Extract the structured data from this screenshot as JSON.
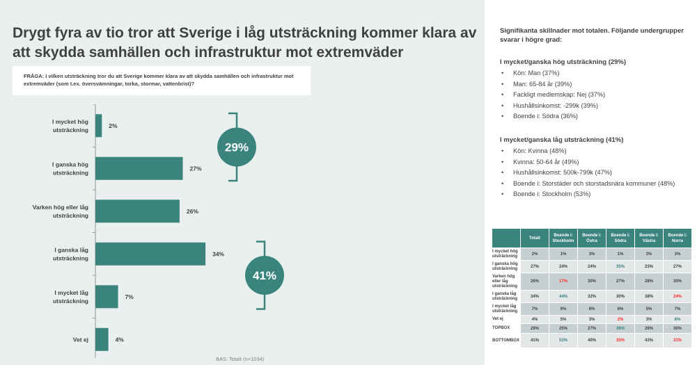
{
  "title": "Drygt fyra av tio tror att Sverige i låg utsträckning kommer klara av att skydda samhällen och infrastruktur mot extremväder",
  "question": "FRÅGA: I vilken utsträckning tror du att Sverige kommer klara av att skydda samhällen och infrastruktur mot extremväder (som t.ex. översvämningar, torka, stormar, vattenbrist)?",
  "base": "BAS: Totalt (n=1034)",
  "colors": {
    "bar": "#3a847d",
    "background": "#e9f0ef",
    "red": "#ff2b2b",
    "green": "#3a847d"
  },
  "chart_data": {
    "type": "bar",
    "orientation": "horizontal",
    "categories": [
      "I mycket hög utsträckning",
      "I ganska hög utsträckning",
      "Varken hög eller låg utsträckning",
      "I ganska låg utsträckning",
      "I mycket låg utsträckning",
      "Vet ej"
    ],
    "values": [
      2,
      27,
      26,
      34,
      7,
      4
    ],
    "labels": [
      "2%",
      "27%",
      "26%",
      "34%",
      "7%",
      "4%"
    ],
    "unit": "%",
    "xlim": [
      0,
      40
    ],
    "groups": [
      {
        "label": "29%",
        "value": 29,
        "covers": [
          0,
          1
        ]
      },
      {
        "label": "41%",
        "value": 41,
        "covers": [
          3,
          4
        ]
      }
    ]
  },
  "significance": {
    "intro": "Signifikanta skillnader mot totalen. Följande undergrupper svarar i högre grad:",
    "groups": [
      {
        "heading": "I mycket/ganska hög utsträckning (29%)",
        "items": [
          "Kön: Man (37%)",
          "Man: 65-84 år (39%)",
          "Fackligt medlemskap: Nej (37%)",
          "Hushållsinkomst: -299k (39%)",
          "Boende i: Södra (36%)"
        ]
      },
      {
        "heading": "I mycket/ganska låg utsträckning (41%)",
        "items": [
          "Kön: Kvinna (48%)",
          "Kvinna: 50-64 år (49%)",
          "Hushållsinkomst: 500k-799k (47%)",
          "Boende i: Storstäder och storstadsnära kommuner (48%)",
          "Boende i: Stockholm (53%)"
        ]
      }
    ]
  },
  "table": {
    "headers": [
      "Totalt",
      "Boende i: Stockholm",
      "Boende i: Östra",
      "Boende i: Södra",
      "Boende i: Västra",
      "Boende i: Norra"
    ],
    "rows": [
      {
        "label": "I mycket hög utsträckning",
        "cells": [
          {
            "v": "2%"
          },
          {
            "v": "1%"
          },
          {
            "v": "3%"
          },
          {
            "v": "1%"
          },
          {
            "v": "3%"
          },
          {
            "v": "3%"
          }
        ]
      },
      {
        "label": "I ganska hög utsträckning",
        "cells": [
          {
            "v": "27%"
          },
          {
            "v": "24%"
          },
          {
            "v": "24%"
          },
          {
            "v": "35%",
            "s": "green"
          },
          {
            "v": "23%"
          },
          {
            "v": "27%"
          }
        ]
      },
      {
        "label": "Varken hög eller låg utsträckning",
        "cells": [
          {
            "v": "26%"
          },
          {
            "v": "17%",
            "s": "red"
          },
          {
            "v": "30%"
          },
          {
            "v": "27%"
          },
          {
            "v": "28%"
          },
          {
            "v": "30%"
          }
        ]
      },
      {
        "label": "I ganska låg utsträckning",
        "cells": [
          {
            "v": "34%"
          },
          {
            "v": "44%",
            "s": "green"
          },
          {
            "v": "32%"
          },
          {
            "v": "30%"
          },
          {
            "v": "38%"
          },
          {
            "v": "24%",
            "s": "red"
          }
        ]
      },
      {
        "label": "I mycket låg utsträckning",
        "cells": [
          {
            "v": "7%"
          },
          {
            "v": "9%"
          },
          {
            "v": "8%"
          },
          {
            "v": "6%"
          },
          {
            "v": "5%"
          },
          {
            "v": "7%"
          }
        ]
      },
      {
        "label": "Vet ej",
        "cells": [
          {
            "v": "4%"
          },
          {
            "v": "5%"
          },
          {
            "v": "3%"
          },
          {
            "v": "2%",
            "s": "red"
          },
          {
            "v": "3%"
          },
          {
            "v": "8%",
            "s": "green"
          }
        ]
      },
      {
        "label": "TOPBOX",
        "cells": [
          {
            "v": "29%"
          },
          {
            "v": "25%"
          },
          {
            "v": "27%"
          },
          {
            "v": "36%",
            "s": "green"
          },
          {
            "v": "26%"
          },
          {
            "v": "30%"
          }
        ]
      },
      {
        "label": "BOTTOMBOX",
        "cells": [
          {
            "v": "41%"
          },
          {
            "v": "53%",
            "s": "green"
          },
          {
            "v": "40%"
          },
          {
            "v": "35%",
            "s": "red"
          },
          {
            "v": "43%"
          },
          {
            "v": "31%",
            "s": "red"
          }
        ]
      }
    ]
  }
}
